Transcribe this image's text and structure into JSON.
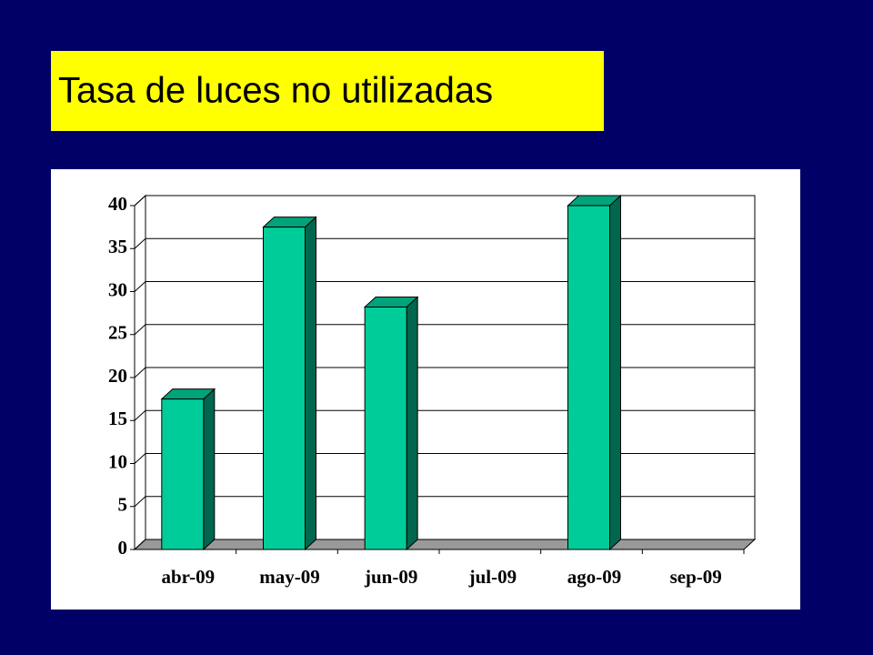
{
  "chart_data": {
    "type": "bar3d",
    "title": "Tasa de luces no utilizadas",
    "categories": [
      "abr-09",
      "may-09",
      "jun-09",
      "jul-09",
      "ago-09",
      "sep-09"
    ],
    "values": [
      17.5,
      37.5,
      28.2,
      null,
      40,
      null
    ],
    "color": "#00cc99",
    "ylim": [
      0,
      40
    ],
    "yticks": [
      0,
      5,
      10,
      15,
      20,
      25,
      30,
      35,
      40
    ],
    "grid": true
  }
}
